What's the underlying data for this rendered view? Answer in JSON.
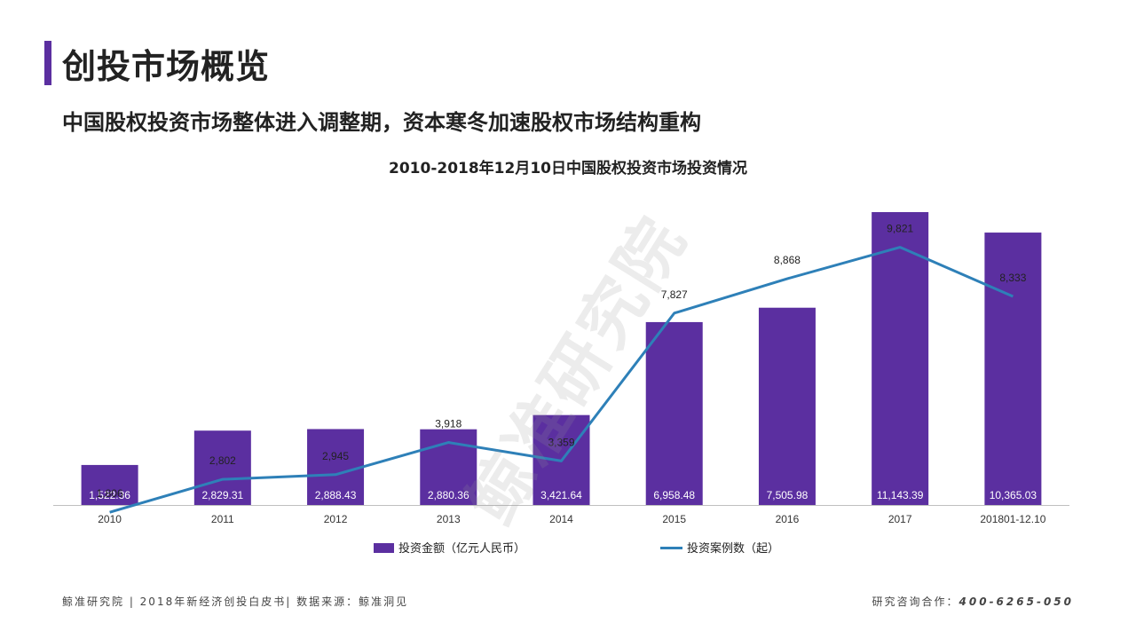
{
  "header": {
    "title": "创投市场概览",
    "subtitle": "中国股权投资市场整体进入调整期，资本寒冬加速股权市场结构重构",
    "accent_color": "#5b2fa0"
  },
  "watermark": "鲸准研究院",
  "footer": {
    "left": "鲸准研究院 | 2018年新经济创投白皮书| 数据来源：鲸准洞见",
    "right_label": "研究咨询合作：",
    "right_number": "400-6265-050"
  },
  "chart_data": {
    "type": "bar",
    "title": "2010-2018年12月10日中国股权投资市场投资情况",
    "categories": [
      "2010",
      "2011",
      "2012",
      "2013",
      "2014",
      "2015",
      "2016",
      "2017",
      "201801-12.10"
    ],
    "series": [
      {
        "name": "投资金额（亿元人民币）",
        "type": "bar",
        "color": "#5b2fa0",
        "values": [
          1522.36,
          2829.31,
          2888.43,
          2880.36,
          3421.64,
          6958.48,
          7505.98,
          11143.39,
          10365.03
        ],
        "labels": [
          "1,522.36",
          "2,829.31",
          "2,888.43",
          "2,880.36",
          "3,421.64",
          "6,958.48",
          "7,505.98",
          "11,143.39",
          "10,365.03"
        ]
      },
      {
        "name": "投资案例数（起）",
        "type": "line",
        "color": "#2e80b8",
        "values": [
          1806,
          2802,
          2945,
          3918,
          3359,
          7827,
          8868,
          9821,
          8333
        ],
        "labels": [
          "1,806",
          "2,802",
          "2,945",
          "3,918",
          "3,359",
          "7,827",
          "8,868",
          "9,821",
          "8,333"
        ]
      }
    ],
    "grid": false,
    "legend": "bottom"
  }
}
